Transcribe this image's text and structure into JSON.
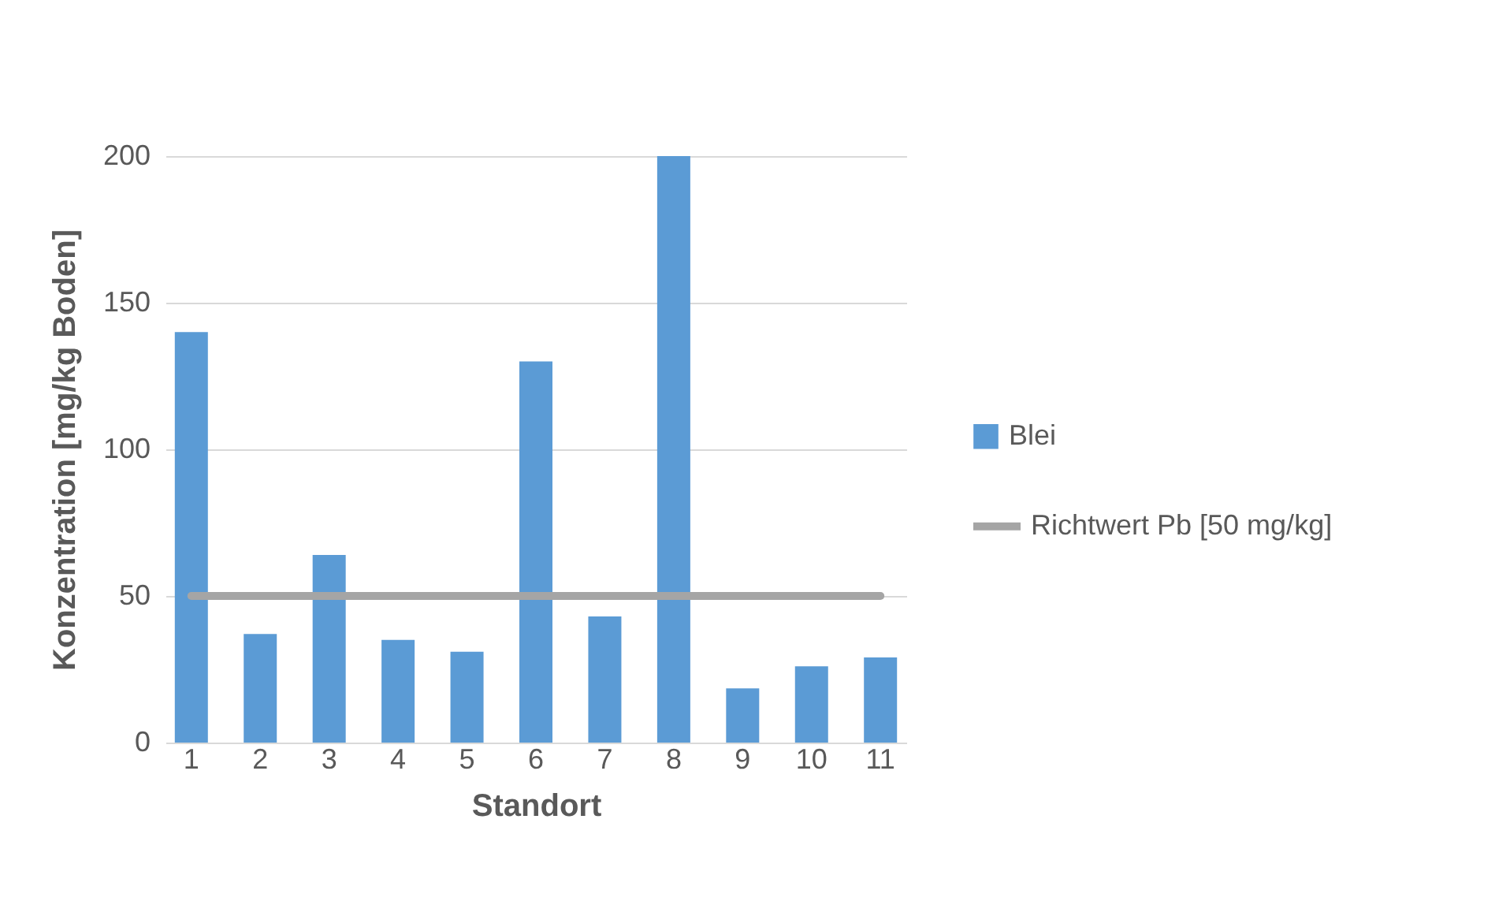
{
  "chart_data": {
    "type": "bar",
    "xlabel": "Standort",
    "ylabel": "Konzentration [mg/kg Boden]",
    "categories": [
      "1",
      "2",
      "3",
      "4",
      "5",
      "6",
      "7",
      "8",
      "9",
      "10",
      "11"
    ],
    "series": [
      {
        "name": "Blei",
        "color": "#5b9bd5",
        "values": [
          140,
          37,
          64,
          35,
          31,
          130,
          43,
          200,
          18.5,
          26,
          29
        ]
      },
      {
        "name": "Richtwert Pb [50 mg/kg]",
        "type": "line",
        "color": "#a5a5a5",
        "values": [
          50,
          50,
          50,
          50,
          50,
          50,
          50,
          50,
          50,
          50,
          50
        ]
      }
    ],
    "ylim": [
      0,
      200
    ],
    "yticks": [
      0,
      50,
      100,
      150,
      200
    ],
    "grid": "y",
    "legend": "right"
  }
}
